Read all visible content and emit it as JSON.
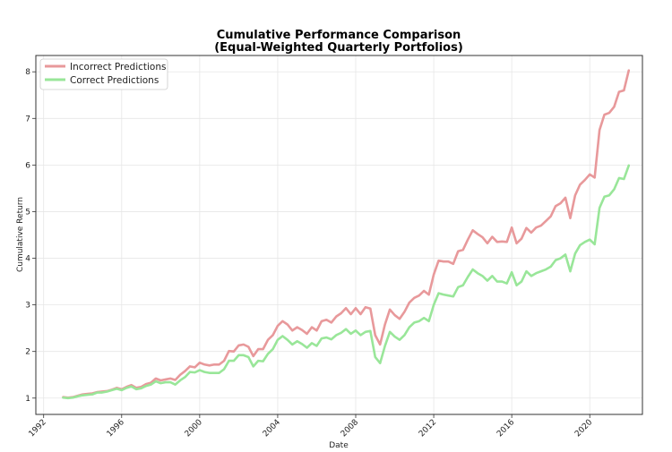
{
  "chart_data": {
    "type": "line",
    "title": "Cumulative Performance Comparison",
    "subtitle": "(Equal-Weighted Quarterly Portfolios)",
    "xlabel": "Date",
    "ylabel": "Cumulative Return",
    "xlim": [
      1991.6,
      2022.7
    ],
    "ylim": [
      0.65,
      8.35
    ],
    "x_ticks": [
      1992,
      1996,
      2000,
      2004,
      2008,
      2012,
      2016,
      2020
    ],
    "y_ticks": [
      1,
      2,
      3,
      4,
      5,
      6,
      7,
      8
    ],
    "grid": true,
    "legend_position": "top-left",
    "colors": {
      "incorrect": "#e8999b",
      "correct": "#99e699"
    },
    "series": [
      {
        "name": "Incorrect Predictions",
        "color": "#e8999b",
        "points": [
          [
            1993.0,
            1.02
          ],
          [
            1993.25,
            1.01
          ],
          [
            1993.5,
            1.02
          ],
          [
            1993.75,
            1.05
          ],
          [
            1994.0,
            1.08
          ],
          [
            1994.25,
            1.09
          ],
          [
            1994.5,
            1.1
          ],
          [
            1994.75,
            1.13
          ],
          [
            1995.0,
            1.14
          ],
          [
            1995.25,
            1.15
          ],
          [
            1995.5,
            1.18
          ],
          [
            1995.75,
            1.22
          ],
          [
            1996.0,
            1.19
          ],
          [
            1996.25,
            1.24
          ],
          [
            1996.5,
            1.28
          ],
          [
            1996.75,
            1.22
          ],
          [
            1997.0,
            1.24
          ],
          [
            1997.25,
            1.3
          ],
          [
            1997.5,
            1.33
          ],
          [
            1997.75,
            1.42
          ],
          [
            1998.0,
            1.38
          ],
          [
            1998.25,
            1.4
          ],
          [
            1998.5,
            1.42
          ],
          [
            1998.75,
            1.39
          ],
          [
            1999.0,
            1.5
          ],
          [
            1999.25,
            1.58
          ],
          [
            1999.5,
            1.68
          ],
          [
            1999.75,
            1.66
          ],
          [
            2000.0,
            1.76
          ],
          [
            2000.25,
            1.72
          ],
          [
            2000.5,
            1.7
          ],
          [
            2000.75,
            1.72
          ],
          [
            2001.0,
            1.72
          ],
          [
            2001.25,
            1.8
          ],
          [
            2001.5,
            2.01
          ],
          [
            2001.75,
            2.0
          ],
          [
            2002.0,
            2.13
          ],
          [
            2002.25,
            2.15
          ],
          [
            2002.5,
            2.1
          ],
          [
            2002.75,
            1.9
          ],
          [
            2003.0,
            2.05
          ],
          [
            2003.25,
            2.05
          ],
          [
            2003.5,
            2.25
          ],
          [
            2003.75,
            2.35
          ],
          [
            2004.0,
            2.55
          ],
          [
            2004.25,
            2.65
          ],
          [
            2004.5,
            2.58
          ],
          [
            2004.75,
            2.45
          ],
          [
            2005.0,
            2.52
          ],
          [
            2005.25,
            2.46
          ],
          [
            2005.5,
            2.38
          ],
          [
            2005.75,
            2.52
          ],
          [
            2006.0,
            2.45
          ],
          [
            2006.25,
            2.65
          ],
          [
            2006.5,
            2.68
          ],
          [
            2006.75,
            2.62
          ],
          [
            2007.0,
            2.75
          ],
          [
            2007.25,
            2.82
          ],
          [
            2007.5,
            2.93
          ],
          [
            2007.75,
            2.8
          ],
          [
            2008.0,
            2.93
          ],
          [
            2008.25,
            2.8
          ],
          [
            2008.5,
            2.95
          ],
          [
            2008.75,
            2.92
          ],
          [
            2009.0,
            2.35
          ],
          [
            2009.25,
            2.15
          ],
          [
            2009.5,
            2.58
          ],
          [
            2009.75,
            2.9
          ],
          [
            2010.0,
            2.78
          ],
          [
            2010.25,
            2.7
          ],
          [
            2010.5,
            2.85
          ],
          [
            2010.75,
            3.05
          ],
          [
            2011.0,
            3.15
          ],
          [
            2011.25,
            3.2
          ],
          [
            2011.5,
            3.3
          ],
          [
            2011.75,
            3.22
          ],
          [
            2012.0,
            3.65
          ],
          [
            2012.25,
            3.95
          ],
          [
            2012.5,
            3.93
          ],
          [
            2012.75,
            3.93
          ],
          [
            2013.0,
            3.88
          ],
          [
            2013.25,
            4.15
          ],
          [
            2013.5,
            4.18
          ],
          [
            2013.75,
            4.4
          ],
          [
            2014.0,
            4.6
          ],
          [
            2014.25,
            4.52
          ],
          [
            2014.5,
            4.45
          ],
          [
            2014.75,
            4.32
          ],
          [
            2015.0,
            4.46
          ],
          [
            2015.25,
            4.35
          ],
          [
            2015.5,
            4.36
          ],
          [
            2015.75,
            4.35
          ],
          [
            2016.0,
            4.66
          ],
          [
            2016.25,
            4.32
          ],
          [
            2016.5,
            4.42
          ],
          [
            2016.75,
            4.65
          ],
          [
            2017.0,
            4.55
          ],
          [
            2017.25,
            4.66
          ],
          [
            2017.5,
            4.7
          ],
          [
            2017.75,
            4.8
          ],
          [
            2018.0,
            4.9
          ],
          [
            2018.25,
            5.12
          ],
          [
            2018.5,
            5.18
          ],
          [
            2018.75,
            5.3
          ],
          [
            2019.0,
            4.86
          ],
          [
            2019.25,
            5.35
          ],
          [
            2019.5,
            5.58
          ],
          [
            2019.75,
            5.68
          ],
          [
            2020.0,
            5.8
          ],
          [
            2020.25,
            5.73
          ],
          [
            2020.5,
            6.75
          ],
          [
            2020.75,
            7.08
          ],
          [
            2021.0,
            7.12
          ],
          [
            2021.25,
            7.25
          ],
          [
            2021.5,
            7.57
          ],
          [
            2021.75,
            7.6
          ],
          [
            2022.0,
            8.03
          ]
        ]
      },
      {
        "name": "Correct Predictions",
        "color": "#99e699",
        "points": [
          [
            1993.0,
            1.01
          ],
          [
            1993.25,
            1.0
          ],
          [
            1993.5,
            1.01
          ],
          [
            1993.75,
            1.04
          ],
          [
            1994.0,
            1.06
          ],
          [
            1994.25,
            1.07
          ],
          [
            1994.5,
            1.08
          ],
          [
            1994.75,
            1.12
          ],
          [
            1995.0,
            1.12
          ],
          [
            1995.25,
            1.14
          ],
          [
            1995.5,
            1.17
          ],
          [
            1995.75,
            1.2
          ],
          [
            1996.0,
            1.17
          ],
          [
            1996.25,
            1.22
          ],
          [
            1996.5,
            1.25
          ],
          [
            1996.75,
            1.19
          ],
          [
            1997.0,
            1.21
          ],
          [
            1997.25,
            1.26
          ],
          [
            1997.5,
            1.29
          ],
          [
            1997.75,
            1.36
          ],
          [
            1998.0,
            1.32
          ],
          [
            1998.25,
            1.34
          ],
          [
            1998.5,
            1.34
          ],
          [
            1998.75,
            1.29
          ],
          [
            1999.0,
            1.38
          ],
          [
            1999.25,
            1.45
          ],
          [
            1999.5,
            1.56
          ],
          [
            1999.75,
            1.55
          ],
          [
            2000.0,
            1.6
          ],
          [
            2000.25,
            1.56
          ],
          [
            2000.5,
            1.54
          ],
          [
            2000.75,
            1.54
          ],
          [
            2001.0,
            1.54
          ],
          [
            2001.25,
            1.62
          ],
          [
            2001.5,
            1.8
          ],
          [
            2001.75,
            1.8
          ],
          [
            2002.0,
            1.92
          ],
          [
            2002.25,
            1.92
          ],
          [
            2002.5,
            1.88
          ],
          [
            2002.75,
            1.68
          ],
          [
            2003.0,
            1.8
          ],
          [
            2003.25,
            1.79
          ],
          [
            2003.5,
            1.95
          ],
          [
            2003.75,
            2.05
          ],
          [
            2004.0,
            2.25
          ],
          [
            2004.25,
            2.33
          ],
          [
            2004.5,
            2.25
          ],
          [
            2004.75,
            2.15
          ],
          [
            2005.0,
            2.22
          ],
          [
            2005.25,
            2.16
          ],
          [
            2005.5,
            2.08
          ],
          [
            2005.75,
            2.18
          ],
          [
            2006.0,
            2.12
          ],
          [
            2006.25,
            2.28
          ],
          [
            2006.5,
            2.3
          ],
          [
            2006.75,
            2.26
          ],
          [
            2007.0,
            2.35
          ],
          [
            2007.25,
            2.4
          ],
          [
            2007.5,
            2.48
          ],
          [
            2007.75,
            2.38
          ],
          [
            2008.0,
            2.45
          ],
          [
            2008.25,
            2.35
          ],
          [
            2008.5,
            2.42
          ],
          [
            2008.75,
            2.44
          ],
          [
            2009.0,
            1.88
          ],
          [
            2009.25,
            1.75
          ],
          [
            2009.5,
            2.12
          ],
          [
            2009.75,
            2.42
          ],
          [
            2010.0,
            2.32
          ],
          [
            2010.25,
            2.25
          ],
          [
            2010.5,
            2.35
          ],
          [
            2010.75,
            2.52
          ],
          [
            2011.0,
            2.62
          ],
          [
            2011.25,
            2.65
          ],
          [
            2011.5,
            2.72
          ],
          [
            2011.75,
            2.65
          ],
          [
            2012.0,
            3.0
          ],
          [
            2012.25,
            3.25
          ],
          [
            2012.5,
            3.22
          ],
          [
            2012.75,
            3.2
          ],
          [
            2013.0,
            3.18
          ],
          [
            2013.25,
            3.38
          ],
          [
            2013.5,
            3.42
          ],
          [
            2013.75,
            3.6
          ],
          [
            2014.0,
            3.76
          ],
          [
            2014.25,
            3.68
          ],
          [
            2014.5,
            3.62
          ],
          [
            2014.75,
            3.52
          ],
          [
            2015.0,
            3.62
          ],
          [
            2015.25,
            3.5
          ],
          [
            2015.5,
            3.5
          ],
          [
            2015.75,
            3.46
          ],
          [
            2016.0,
            3.7
          ],
          [
            2016.25,
            3.42
          ],
          [
            2016.5,
            3.5
          ],
          [
            2016.75,
            3.72
          ],
          [
            2017.0,
            3.62
          ],
          [
            2017.25,
            3.68
          ],
          [
            2017.5,
            3.72
          ],
          [
            2017.75,
            3.76
          ],
          [
            2018.0,
            3.82
          ],
          [
            2018.25,
            3.96
          ],
          [
            2018.5,
            4.0
          ],
          [
            2018.75,
            4.08
          ],
          [
            2019.0,
            3.72
          ],
          [
            2019.25,
            4.1
          ],
          [
            2019.5,
            4.28
          ],
          [
            2019.75,
            4.35
          ],
          [
            2020.0,
            4.4
          ],
          [
            2020.25,
            4.3
          ],
          [
            2020.5,
            5.08
          ],
          [
            2020.75,
            5.32
          ],
          [
            2021.0,
            5.35
          ],
          [
            2021.25,
            5.48
          ],
          [
            2021.5,
            5.72
          ],
          [
            2021.75,
            5.7
          ],
          [
            2022.0,
            5.99
          ]
        ]
      }
    ]
  }
}
